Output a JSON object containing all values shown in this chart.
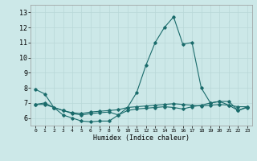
{
  "xlabel": "Humidex (Indice chaleur)",
  "xlim": [
    -0.5,
    23.5
  ],
  "ylim": [
    5.5,
    13.5
  ],
  "yticks": [
    6,
    7,
    8,
    9,
    10,
    11,
    12,
    13
  ],
  "xticks": [
    0,
    1,
    2,
    3,
    4,
    5,
    6,
    7,
    8,
    9,
    10,
    11,
    12,
    13,
    14,
    15,
    16,
    17,
    18,
    19,
    20,
    21,
    22,
    23
  ],
  "bg_color": "#cce8e8",
  "line_color": "#1a6b6b",
  "grid_color": "#b8d8d8",
  "line1_y": [
    7.9,
    7.6,
    6.7,
    6.2,
    6.0,
    5.8,
    5.75,
    5.8,
    5.8,
    6.2,
    6.7,
    7.7,
    9.5,
    11.0,
    12.0,
    12.7,
    10.9,
    11.0,
    8.0,
    7.0,
    7.1,
    7.1,
    6.5,
    6.7
  ],
  "line2_y": [
    6.9,
    6.9,
    6.7,
    6.5,
    6.35,
    6.3,
    6.4,
    6.45,
    6.5,
    6.55,
    6.7,
    6.75,
    6.8,
    6.85,
    6.9,
    6.95,
    6.9,
    6.85,
    6.8,
    6.85,
    6.9,
    6.85,
    6.75,
    6.75
  ],
  "line3_y": [
    6.9,
    7.0,
    6.7,
    6.5,
    6.3,
    6.2,
    6.3,
    6.35,
    6.4,
    6.2,
    6.5,
    6.6,
    6.65,
    6.7,
    6.75,
    6.7,
    6.6,
    6.75,
    6.85,
    7.0,
    7.1,
    6.85,
    6.5,
    6.75
  ],
  "xlabel_fontsize": 6,
  "ytick_fontsize": 6,
  "xtick_fontsize": 4.5,
  "linewidth": 0.8,
  "markersize": 1.8
}
